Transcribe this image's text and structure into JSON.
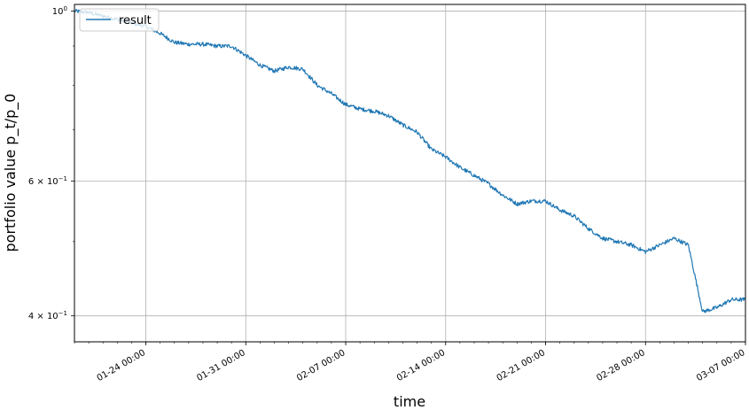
{
  "chart_data": {
    "type": "line",
    "xlabel": "time",
    "ylabel": "portfolio value p_t/p_0",
    "yscale": "log",
    "grid": true,
    "legend_placement": "top-left",
    "line_color": "#1f77b4",
    "x_ticks": [
      "01-24 00:00",
      "01-31 00:00",
      "02-07 00:00",
      "02-14 00:00",
      "02-21 00:00",
      "02-28 00:00",
      "03-07 00:00"
    ],
    "y_ticks": [
      {
        "value": 1.0,
        "base": "10",
        "exp": "0",
        "coef": ""
      },
      {
        "value": 0.6,
        "base": "10",
        "exp": "−1",
        "coef": "6 × "
      },
      {
        "value": 0.4,
        "base": "10",
        "exp": "−1",
        "coef": "4 × "
      }
    ],
    "xlim": [
      "2017-01-19 00:00",
      "2017-03-07 00:00"
    ],
    "ylim": [
      0.37,
      1.02
    ],
    "series": [
      {
        "name": "result",
        "x": [
          "2017-01-19 00:00",
          "2017-01-20 00:00",
          "2017-01-21 00:00",
          "2017-01-22 00:00",
          "2017-01-23 00:00",
          "2017-01-24 00:00",
          "2017-01-25 00:00",
          "2017-01-26 00:00",
          "2017-01-27 00:00",
          "2017-01-28 00:00",
          "2017-01-29 00:00",
          "2017-01-30 00:00",
          "2017-01-31 00:00",
          "2017-02-01 00:00",
          "2017-02-02 00:00",
          "2017-02-03 00:00",
          "2017-02-04 00:00",
          "2017-02-05 00:00",
          "2017-02-06 00:00",
          "2017-02-07 00:00",
          "2017-02-08 00:00",
          "2017-02-09 00:00",
          "2017-02-10 00:00",
          "2017-02-11 00:00",
          "2017-02-12 00:00",
          "2017-02-13 00:00",
          "2017-02-14 00:00",
          "2017-02-15 00:00",
          "2017-02-16 00:00",
          "2017-02-17 00:00",
          "2017-02-18 00:00",
          "2017-02-19 00:00",
          "2017-02-20 00:00",
          "2017-02-21 00:00",
          "2017-02-22 00:00",
          "2017-02-23 00:00",
          "2017-02-24 00:00",
          "2017-02-25 00:00",
          "2017-02-26 00:00",
          "2017-02-27 00:00",
          "2017-02-28 00:00",
          "2017-03-01 00:00",
          "2017-03-02 00:00",
          "2017-03-03 00:00",
          "2017-03-04 00:00",
          "2017-03-05 00:00",
          "2017-03-06 00:00",
          "2017-03-07 00:00"
        ],
        "y": [
          1.0,
          0.995,
          0.985,
          0.975,
          0.965,
          0.955,
          0.935,
          0.91,
          0.905,
          0.905,
          0.9,
          0.9,
          0.875,
          0.85,
          0.835,
          0.845,
          0.84,
          0.8,
          0.78,
          0.755,
          0.745,
          0.74,
          0.73,
          0.71,
          0.695,
          0.66,
          0.645,
          0.625,
          0.61,
          0.595,
          0.575,
          0.56,
          0.565,
          0.565,
          0.55,
          0.54,
          0.52,
          0.505,
          0.5,
          0.495,
          0.485,
          0.495,
          0.505,
          0.495,
          0.405,
          0.41,
          0.42,
          0.42
        ]
      }
    ]
  }
}
